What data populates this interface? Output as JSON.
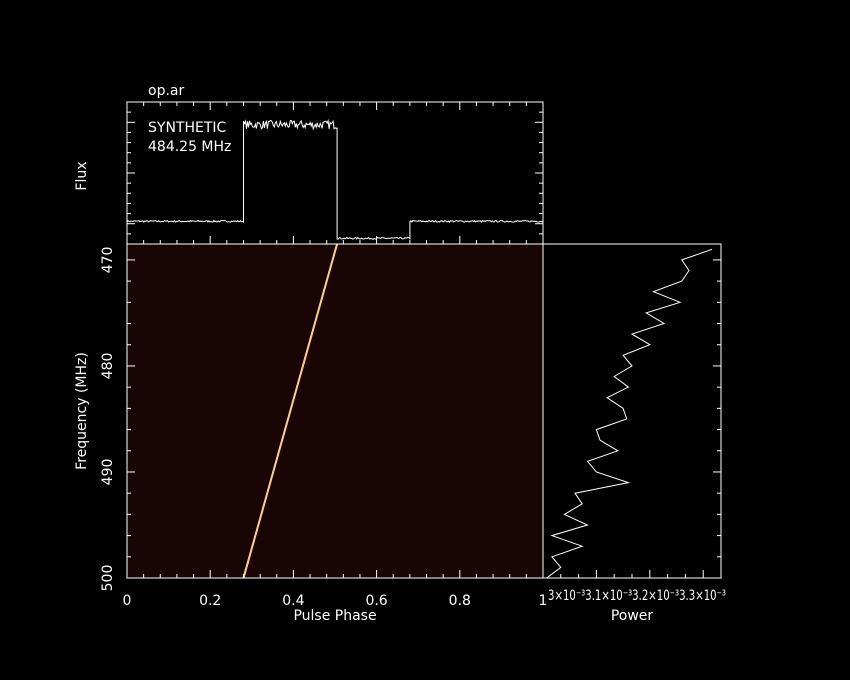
{
  "file_label": "op.ar",
  "annotation": {
    "line1": "SYNTHETIC",
    "line2": "484.25 MHz"
  },
  "colors": {
    "background": "#000000",
    "foreground": "#ffffff",
    "waterfall_bg": "#1a0505",
    "sweep": "#ffd27a"
  },
  "chart_data": [
    {
      "type": "line",
      "name": "profile",
      "ylabel": "Flux",
      "xlim": [
        0,
        1
      ],
      "ylim": [
        0,
        1
      ],
      "segments": [
        {
          "x0": 0.0,
          "x1": 0.28,
          "level": 0.16,
          "noise": 0.006
        },
        {
          "x0": 0.28,
          "x1": 0.505,
          "level": 0.84,
          "noise": 0.03
        },
        {
          "x0": 0.505,
          "x1": 0.68,
          "level": 0.04,
          "noise": 0.006
        },
        {
          "x0": 0.68,
          "x1": 1.0,
          "level": 0.16,
          "noise": 0.006
        }
      ]
    },
    {
      "type": "heatmap",
      "name": "waterfall",
      "xlabel": "Pulse Phase",
      "ylabel": "Frequency (MHz)",
      "xlim": [
        0,
        1
      ],
      "ylim": [
        500,
        468.5
      ],
      "xticks": [
        "0",
        "0.2",
        "0.4",
        "0.6",
        "0.8",
        "1"
      ],
      "xtick_values": [
        0,
        0.2,
        0.4,
        0.6,
        0.8,
        1.0
      ],
      "yticks": [
        "470",
        "480",
        "490",
        "500"
      ],
      "ytick_values": [
        470,
        480,
        490,
        500
      ],
      "sweep": {
        "phase_at_500": 0.28,
        "phase_at_468.5": 0.505
      }
    },
    {
      "type": "line",
      "name": "power",
      "xlabel": "Power",
      "xtick_label_run": "3×10⁻³3.1×10⁻³3.2×10⁻³3.3×10⁻³",
      "frequency": [
        469.0,
        470.0,
        471.0,
        472.0,
        473.0,
        474.0,
        475.0,
        476.0,
        477.0,
        478.0,
        479.0,
        480.0,
        481.0,
        482.0,
        483.0,
        484.0,
        485.0,
        486.0,
        487.0,
        488.0,
        489.0,
        490.0,
        491.0,
        492.0,
        493.0,
        494.0,
        495.0,
        496.0,
        497.0,
        498.0,
        499.0,
        500.0
      ],
      "power_frac": [
        0.95,
        0.78,
        0.82,
        0.78,
        0.62,
        0.77,
        0.58,
        0.68,
        0.5,
        0.6,
        0.45,
        0.5,
        0.4,
        0.48,
        0.36,
        0.45,
        0.47,
        0.3,
        0.32,
        0.42,
        0.25,
        0.3,
        0.48,
        0.18,
        0.22,
        0.12,
        0.25,
        0.05,
        0.22,
        0.05,
        0.1,
        0.02
      ]
    }
  ]
}
